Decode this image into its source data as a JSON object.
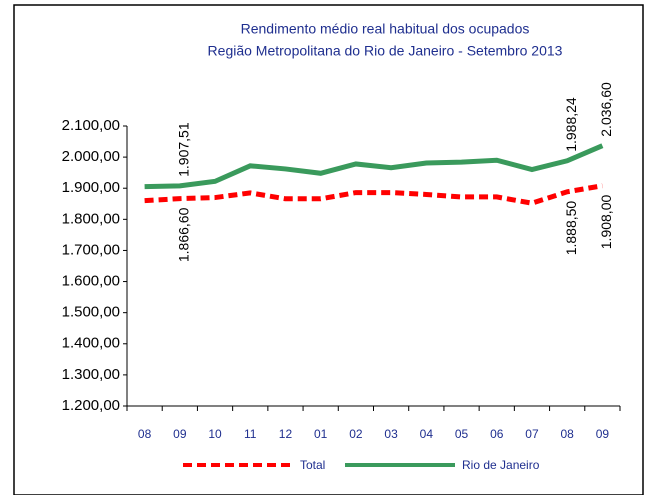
{
  "chart_data": {
    "type": "line",
    "title": "Rendimento médio real habitual dos ocupados",
    "subtitle": "Região Metropolitana do Rio de Janeiro - Setembro 2013",
    "categories": [
      "08",
      "09",
      "10",
      "11",
      "12",
      "01",
      "02",
      "03",
      "04",
      "05",
      "06",
      "07",
      "08",
      "09"
    ],
    "series": [
      {
        "name": "Total",
        "color": "#ff0000",
        "dashed": true,
        "values": [
          1860,
          1866.6,
          1870,
          1885,
          1866,
          1866,
          1886,
          1886,
          1880,
          1872,
          1872,
          1852,
          1888.5,
          1908.0
        ],
        "value_labels": [
          null,
          "1.866,60",
          null,
          null,
          null,
          null,
          null,
          null,
          null,
          null,
          null,
          null,
          "1.888,50",
          "1.908,00"
        ],
        "label_side": "below"
      },
      {
        "name": "Rio de Janeiro",
        "color": "#3a9a5c",
        "dashed": false,
        "values": [
          1905,
          1907.51,
          1922,
          1972,
          1962,
          1948,
          1978,
          1966,
          1981,
          1984,
          1990,
          1960,
          1988.24,
          2036.6
        ],
        "value_labels": [
          null,
          "1.907,51",
          null,
          null,
          null,
          null,
          null,
          null,
          null,
          null,
          null,
          null,
          "1.988,24",
          "2.036,60"
        ],
        "label_side": "above"
      }
    ],
    "ylim": [
      1200,
      2100
    ],
    "yticks": [
      {
        "value": 1200,
        "label": "1.200,00"
      },
      {
        "value": 1300,
        "label": "1.300,00"
      },
      {
        "value": 1400,
        "label": "1.400,00"
      },
      {
        "value": 1500,
        "label": "1.500,00"
      },
      {
        "value": 1600,
        "label": "1.600,00"
      },
      {
        "value": 1700,
        "label": "1.700,00"
      },
      {
        "value": 1800,
        "label": "1.800,00"
      },
      {
        "value": 1900,
        "label": "1.900,00"
      },
      {
        "value": 2000,
        "label": "2.000,00"
      },
      {
        "value": 2100,
        "label": "2.100,00"
      }
    ],
    "legend": "bottom"
  }
}
